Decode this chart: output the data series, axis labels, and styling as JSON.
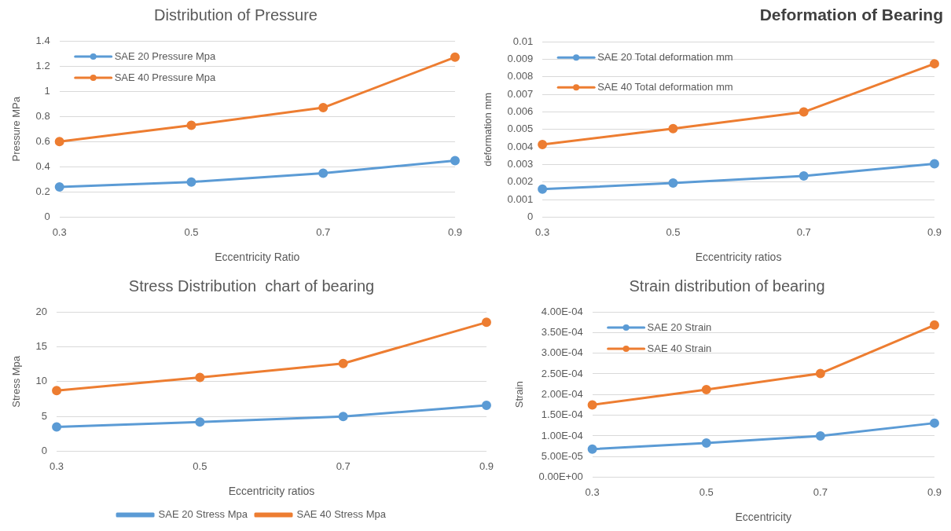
{
  "chart_data": [
    {
      "type": "line",
      "title": "Distribution of Pressure",
      "xlabel": "Eccentricity Ratio",
      "ylabel": "Pressure MPa",
      "categories": [
        "0.3",
        "0.5",
        "0.7",
        "0.9"
      ],
      "series": [
        {
          "name": "SAE 20 Pressure Mpa",
          "color": "#5b9bd5",
          "values": [
            0.24,
            0.28,
            0.35,
            0.45
          ]
        },
        {
          "name": "SAE 40 Pressure Mpa",
          "color": "#ed7d31",
          "values": [
            0.6,
            0.73,
            0.87,
            1.27
          ]
        }
      ],
      "ylim": [
        0,
        1.4
      ],
      "yticks": [
        0,
        0.2,
        0.4,
        0.6,
        0.8,
        1,
        1.2,
        1.4
      ],
      "grid": "y",
      "legend": "top left",
      "marker": "circle",
      "line_style": "solid"
    },
    {
      "type": "line",
      "title": "Deformation of Bearing",
      "xlabel": "Eccentricity ratios",
      "ylabel": "deformation mm",
      "categories": [
        "0.3",
        "0.5",
        "0.7",
        "0.9"
      ],
      "series": [
        {
          "name": "SAE 20 Total deformation mm",
          "color": "#5b9bd5",
          "values": [
            0.0016,
            0.00195,
            0.00235,
            0.00305
          ]
        },
        {
          "name": "SAE 40 Total deformation mm",
          "color": "#ed7d31",
          "values": [
            0.00415,
            0.00505,
            0.006,
            0.00875
          ]
        }
      ],
      "ylim": [
        0,
        0.01
      ],
      "yticks": [
        0,
        0.001,
        0.002,
        0.003,
        0.004,
        0.005,
        0.006,
        0.007,
        0.008,
        0.009,
        0.01
      ],
      "grid": "y",
      "legend": "top left",
      "marker": "circle",
      "line_style": "solid"
    },
    {
      "type": "line",
      "title": "Stress Distribution  chart of bearing",
      "xlabel": "Eccentricity ratios",
      "ylabel": "Stress Mpa",
      "categories": [
        "0.3",
        "0.5",
        "0.7",
        "0.9"
      ],
      "series": [
        {
          "name": "SAE 20 Stress Mpa",
          "color": "#5b9bd5",
          "values": [
            3.5,
            4.2,
            5,
            6.6
          ]
        },
        {
          "name": "SAE 40 Stress Mpa",
          "color": "#ed7d31",
          "values": [
            8.7,
            10.6,
            12.6,
            18.5
          ]
        }
      ],
      "ylim": [
        0,
        20
      ],
      "yticks": [
        0,
        5,
        10,
        15,
        20
      ],
      "grid": "y",
      "legend": "bottom",
      "marker": "circle",
      "line_style": "solid"
    },
    {
      "type": "line",
      "title": "Strain distribution of bearing",
      "xlabel": "Eccentricity",
      "ylabel": "Strain",
      "categories": [
        "0.3",
        "0.5",
        "0.7",
        "0.9"
      ],
      "series": [
        {
          "name": "SAE 20 Strain",
          "color": "#5b9bd5",
          "values": [
            6.8e-05,
            8.3e-05,
            0.0001,
            0.000131
          ]
        },
        {
          "name": "SAE 40 Strain",
          "color": "#ed7d31",
          "values": [
            0.000175,
            0.000212,
            0.000251,
            0.000368
          ]
        }
      ],
      "ylim": [
        0,
        0.0004
      ],
      "yticks": [
        {
          "value": 0,
          "label": "0.00E+00"
        },
        {
          "value": 5e-05,
          "label": "5.00E-05"
        },
        {
          "value": 0.0001,
          "label": "1.00E-04"
        },
        {
          "value": 0.00015,
          "label": "1.50E-04"
        },
        {
          "value": 0.0002,
          "label": "2.00E-04"
        },
        {
          "value": 0.00025,
          "label": "2.50E-04"
        },
        {
          "value": 0.0003,
          "label": "3.00E-04"
        },
        {
          "value": 0.00035,
          "label": "3.50E-04"
        },
        {
          "value": 0.0004,
          "label": "4.00E-04"
        }
      ],
      "grid": "y",
      "legend": "top left",
      "marker": "circle",
      "line_style": "solid"
    }
  ]
}
